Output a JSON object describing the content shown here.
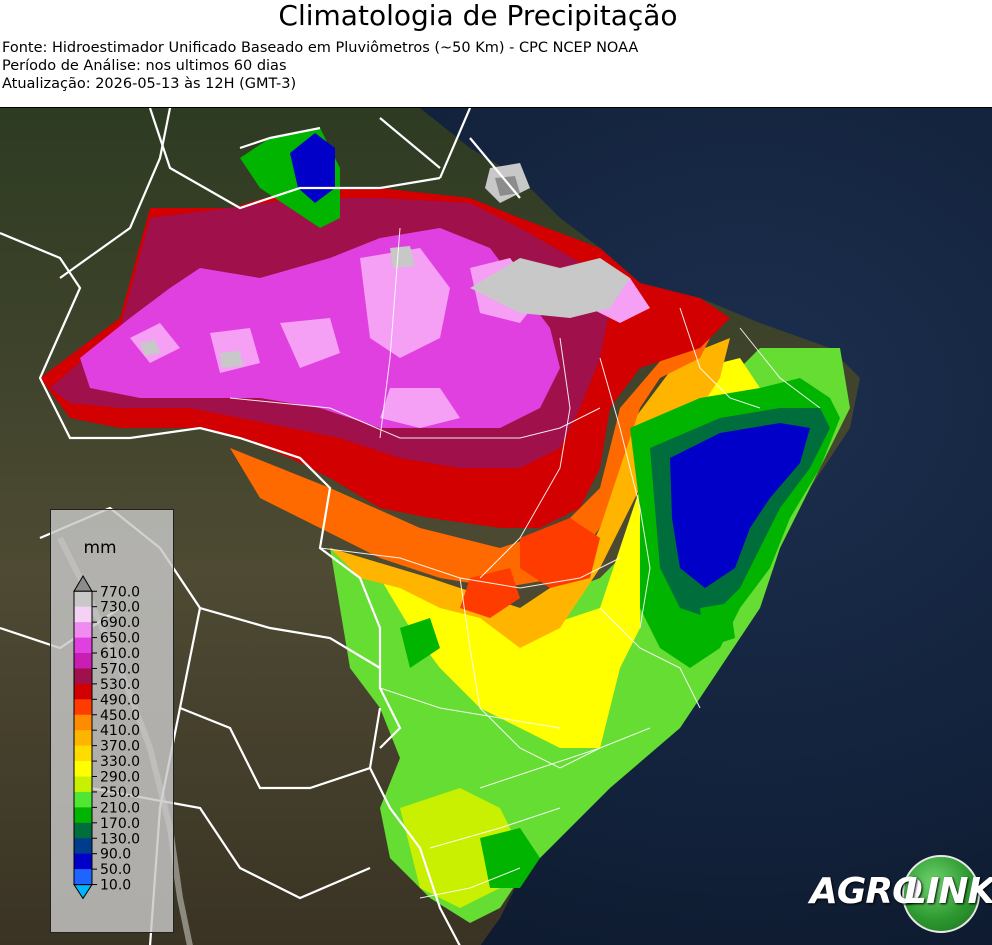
{
  "header": {
    "title": "Climatologia de Precipitação",
    "source": "Fonte: Hidroestimador Unificado Baseado em Pluviômetros (~50 Km) - CPC NCEP NOAA",
    "period": "Período de Análise: nos ultimos 60 dias",
    "updated": "Atualização: 2026-05-13 às 12H (GMT-3)"
  },
  "legend": {
    "unit": "mm",
    "levels": [
      "770.0",
      "730.0",
      "690.0",
      "650.0",
      "610.0",
      "570.0",
      "530.0",
      "490.0",
      "450.0",
      "410.0",
      "370.0",
      "330.0",
      "290.0",
      "250.0",
      "210.0",
      "170.0",
      "130.0",
      "90.0",
      "50.0",
      "10.0"
    ],
    "colors": [
      "#8c8c8c",
      "#c8c8c8",
      "#f5d2f5",
      "#f08cf0",
      "#e040e0",
      "#c81eb4",
      "#a0104b",
      "#d20000",
      "#ff3c00",
      "#ff8c00",
      "#ffb400",
      "#ffdc00",
      "#ffff00",
      "#c8f000",
      "#50e632",
      "#00b400",
      "#006e3c",
      "#003c8c",
      "#0000c8",
      "#1e64ff",
      "#00b4ff"
    ]
  },
  "logo": {
    "part1": "AGRO",
    "part2": "LINK"
  }
}
